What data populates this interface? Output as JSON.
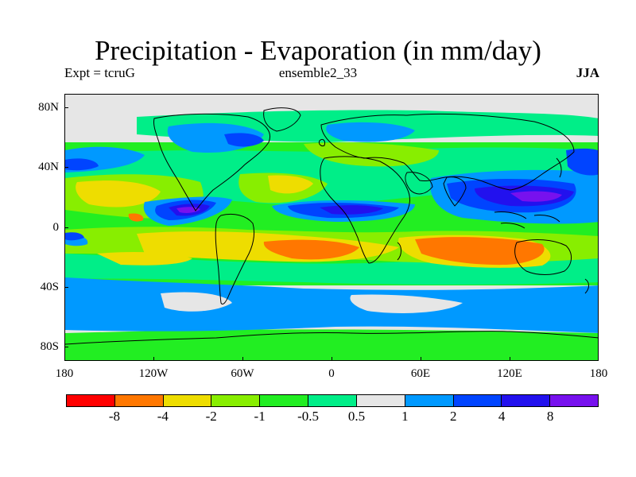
{
  "title": "Precipitation - Evaporation (in mm/day)",
  "subtitle_left": "Expt = tcruG",
  "subtitle_center": "ensemble2_33",
  "subtitle_right": "JJA",
  "axes": {
    "y_ticks": [
      "80N",
      "40N",
      "0",
      "40S",
      "80S"
    ],
    "x_ticks": [
      "180",
      "120W",
      "60W",
      "0",
      "60E",
      "120E",
      "180"
    ]
  },
  "colorbar": {
    "colors": [
      "#ff0000",
      "#ff7700",
      "#eedd00",
      "#88ee00",
      "#22ee22",
      "#00ee88",
      "#e6e6e6",
      "#0099ff",
      "#0044ff",
      "#2211ee",
      "#7711ee"
    ],
    "labels": [
      "-8",
      "-4",
      "-2",
      "-1",
      "-0.5",
      "0.5",
      "1",
      "2",
      "4",
      "8"
    ]
  },
  "legend": {
    "classes": [
      {
        "range": "< -8",
        "color": "#ff0000"
      },
      {
        "range": "-8 to -4",
        "color": "#ff7700"
      },
      {
        "range": "-4 to -2",
        "color": "#eedd00"
      },
      {
        "range": "-2 to -1",
        "color": "#88ee00"
      },
      {
        "range": "-1 to -0.5",
        "color": "#22ee22"
      },
      {
        "range": "-0.5 to 0.5",
        "color": "#00ee88"
      },
      {
        "range": "0.5 to 1",
        "color": "#e6e6e6"
      },
      {
        "range": "1 to 2",
        "color": "#0099ff"
      },
      {
        "range": "2 to 4",
        "color": "#0044ff"
      },
      {
        "range": "4 to 8",
        "color": "#2211ee"
      },
      {
        "range": "> 8",
        "color": "#7711ee"
      }
    ]
  }
}
